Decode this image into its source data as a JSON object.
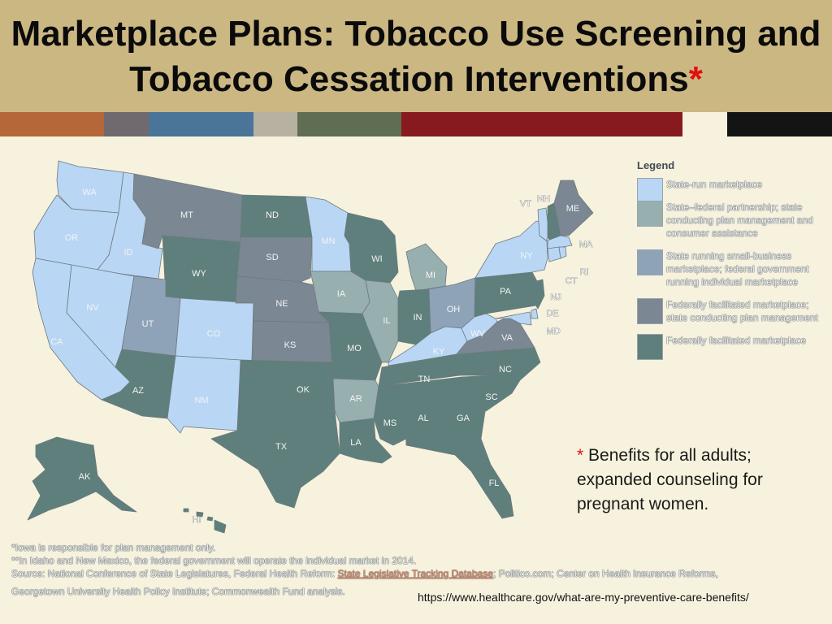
{
  "header": {
    "title_line1": "Marketplace Plans: Tobacco Use Screening and",
    "title_line2": "Tobacco Cessation Interventions",
    "title_asterisk": "*"
  },
  "colors": {
    "state_run": "#b9d6f4",
    "partnership": "#97afae",
    "small_business": "#8fa3b8",
    "federal_state_mgmt": "#7b8792",
    "federal": "#5e7f7b",
    "accent_red": "#e01010",
    "title_band": "#cbb782",
    "stripe": [
      "#b5673a",
      "#706a6f",
      "#4b7499",
      "#b7b1a2",
      "#5f6e52",
      "#871a1f",
      "#141414"
    ]
  },
  "legend": {
    "title": "Legend",
    "items": [
      {
        "label": "State-run marketplace",
        "color": "#b9d6f4"
      },
      {
        "label": "State–federal partnership; state conducting plan management and consumer assistance",
        "color": "#97afae"
      },
      {
        "label": "State running small-business marketplace; federal government running individual marketplace",
        "color": "#8fa3b8"
      },
      {
        "label": "Federally facilitated marketplace; state conducting plan management",
        "color": "#7b8792"
      },
      {
        "label": "Federally facilitated marketplace",
        "color": "#5e7f7b"
      }
    ]
  },
  "states": {
    "WA": "WA",
    "OR": "OR",
    "CA": "CA",
    "ID": "ID",
    "NV": "NV",
    "MT": "MT",
    "WY": "WY",
    "UT": "UT",
    "CO": "CO",
    "AZ": "AZ",
    "NM": "NM",
    "ND": "ND",
    "SD": "SD",
    "NE": "NE",
    "KS": "KS",
    "OK": "OK",
    "TX": "TX",
    "MN": "MN",
    "IA": "IA",
    "MO": "MO",
    "AR": "AR",
    "LA": "LA",
    "WI": "WI",
    "IL": "IL",
    "MI": "MI",
    "IN": "IN",
    "OH": "OH",
    "KY": "KY",
    "TN": "TN",
    "MS": "MS",
    "AL": "AL",
    "GA": "GA",
    "FL": "FL",
    "SC": "SC",
    "NC": "NC",
    "VA": "VA",
    "WV": "WV",
    "PA": "PA",
    "NY": "NY",
    "VT": "VT",
    "NH": "NH",
    "ME": "ME",
    "MA": "MA",
    "RI": "RI",
    "CT": "CT",
    "NJ": "NJ",
    "DE": "DE",
    "MD": "MD",
    "AK": "AK",
    "HI": "HI"
  },
  "note": {
    "asterisk": "*",
    "text": " Benefits for all adults; expanded counseling for pregnant women."
  },
  "footnotes": {
    "line1": "*Iowa is responsible for plan management only.",
    "line2": "**In Idaho and New Mexico, the federal government will operate the individual market in 2014.",
    "source_prefix": "Source: National Conference of State Legislatures, Federal Health Reform: ",
    "source_link": "State Legislative Tracking Database",
    "source_suffix": "; Politico.com; Center on Health Insurance Reforms,",
    "line4": "Georgetown University Health Policy Institute; Commonwealth Fund analysis."
  },
  "source_url": "https://www.healthcare.gov/what-are-my-preventive-care-benefits/"
}
